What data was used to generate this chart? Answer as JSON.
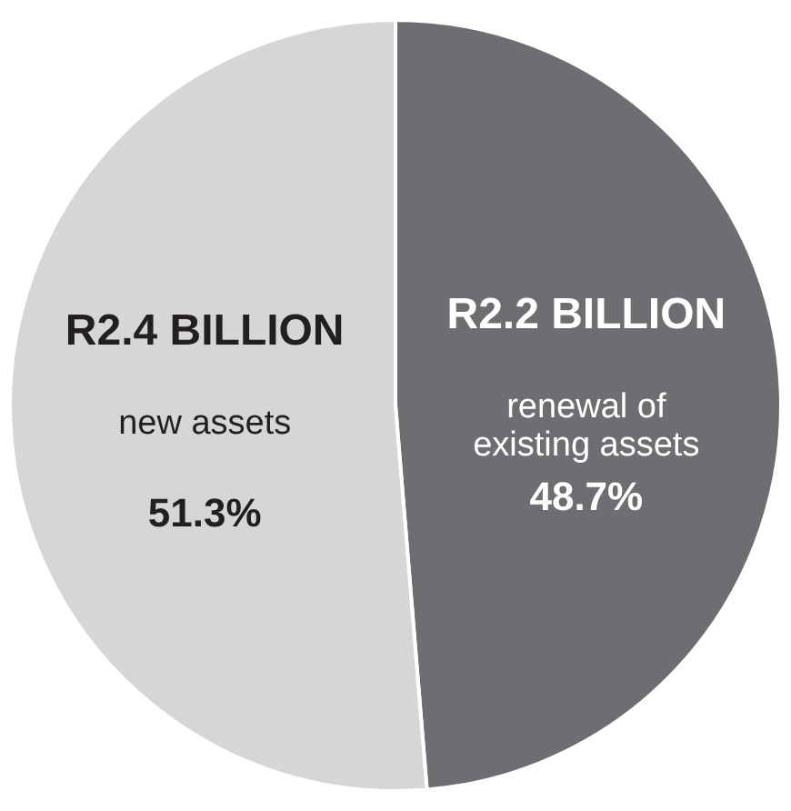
{
  "chart_data": {
    "type": "pie",
    "categories": [
      "renewal of\nexisting assets",
      "new assets"
    ],
    "values": [
      48.7,
      51.3
    ],
    "colors": [
      "#6d6e71",
      "#d6d6d6"
    ],
    "value_labels": [
      "48.7%",
      "51.3%"
    ],
    "annotations": [
      "R2.2 BILLION",
      "R2.4 BILLION"
    ]
  }
}
